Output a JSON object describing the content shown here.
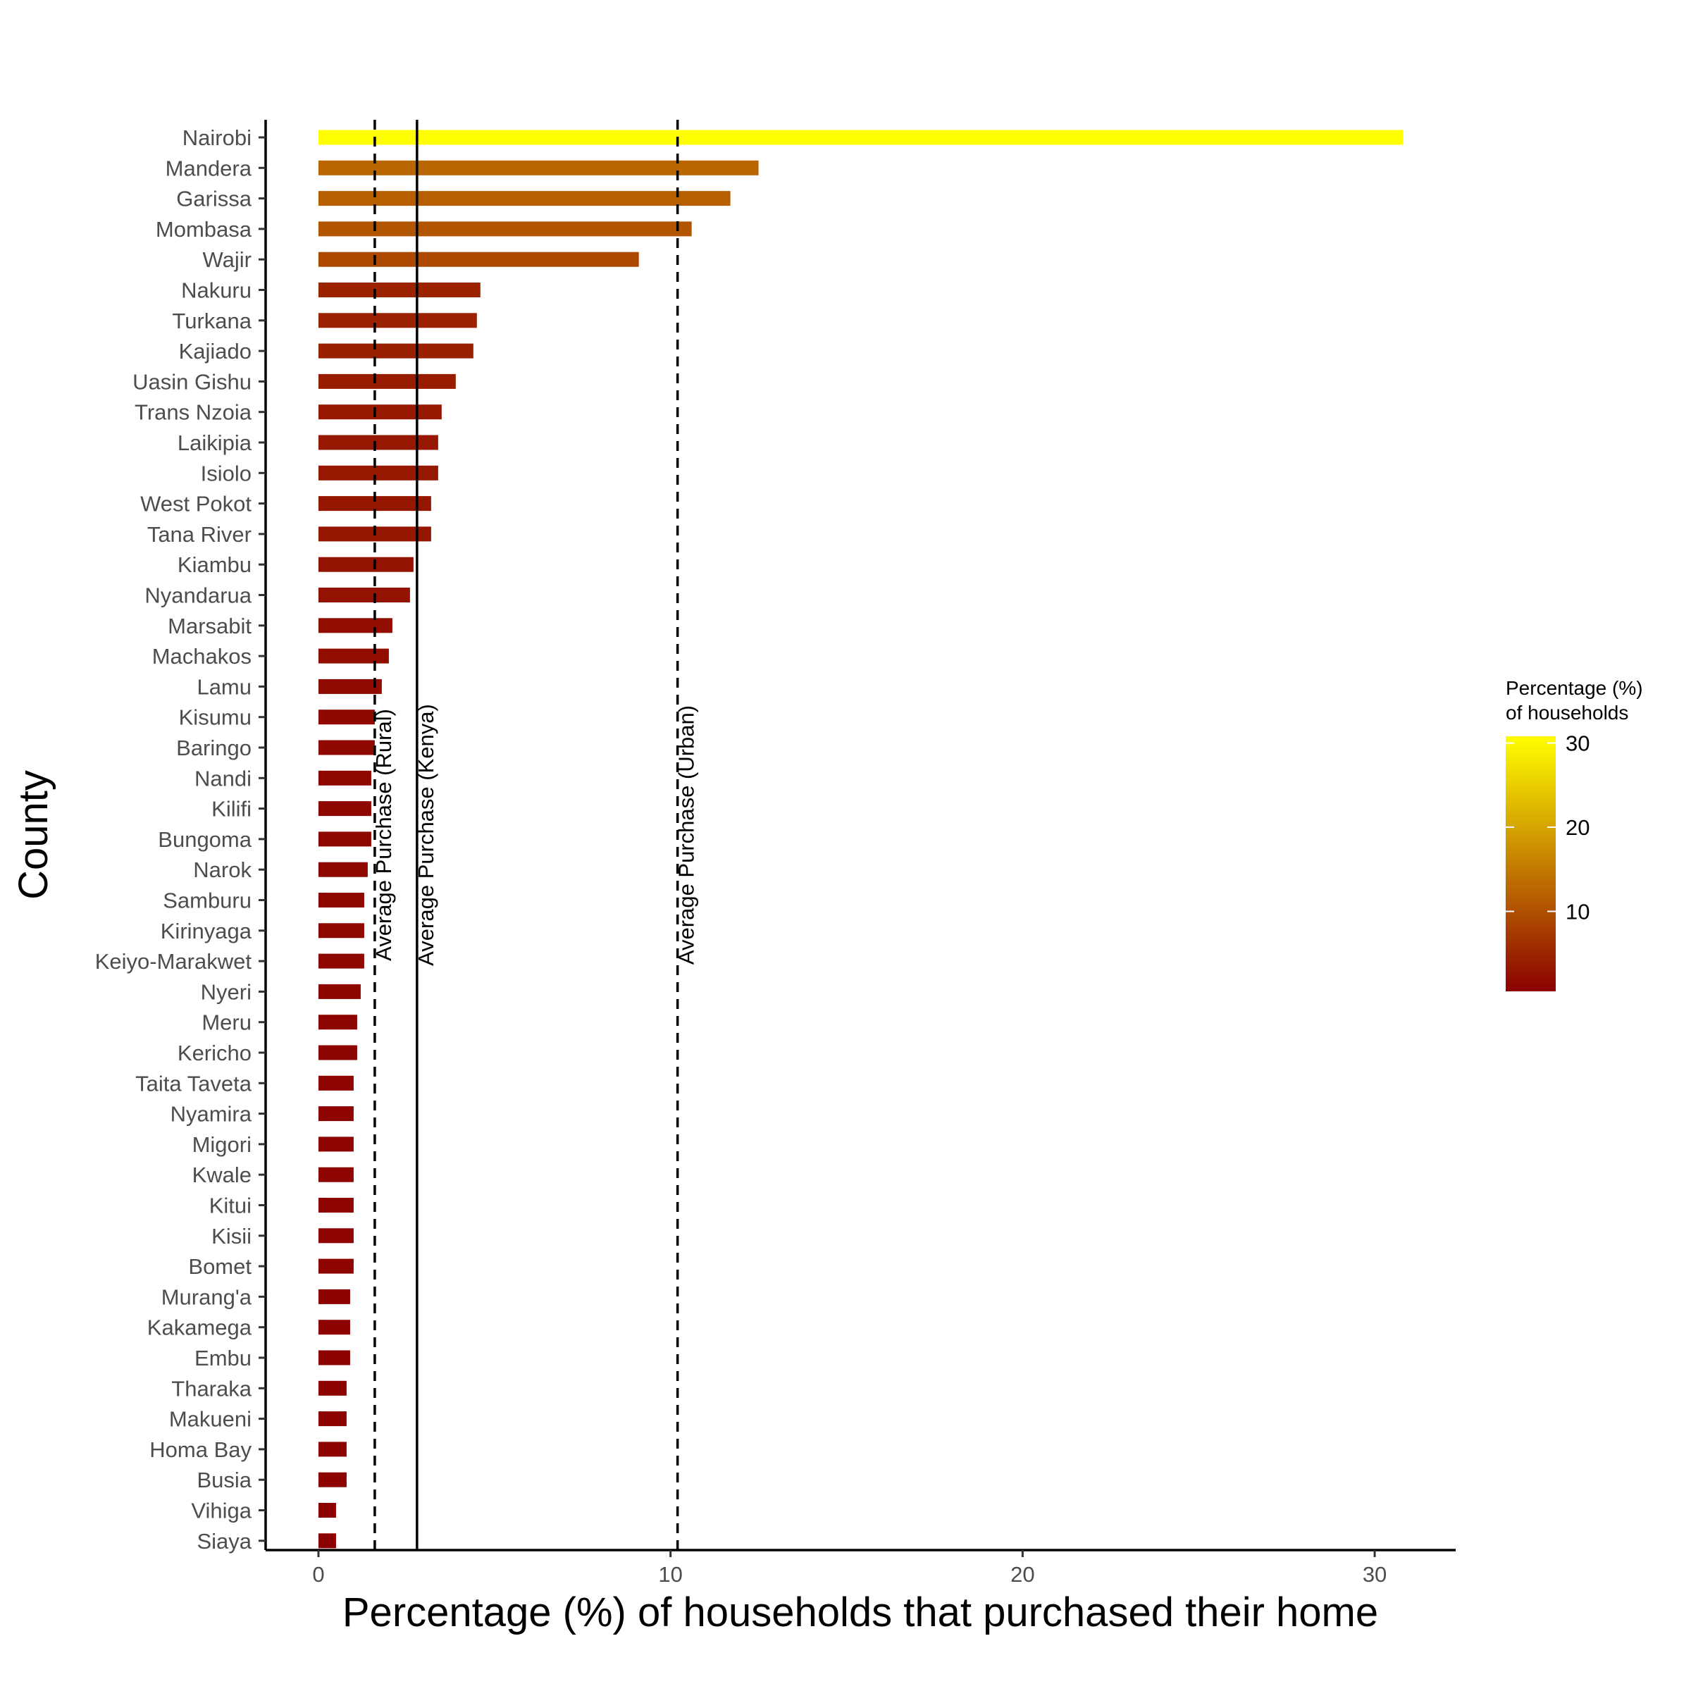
{
  "chart_data": {
    "type": "bar",
    "orientation": "horizontal",
    "xlabel": "Percentage (%) of households that purchased their home",
    "ylabel": "County",
    "xlim": [
      -1.5,
      32.3
    ],
    "x_ticks": [
      0,
      10,
      20,
      30
    ],
    "categories": [
      "Nairobi",
      "Mandera",
      "Garissa",
      "Mombasa",
      "Wajir",
      "Nakuru",
      "Turkana",
      "Kajiado",
      "Uasin Gishu",
      "Trans Nzoia",
      "Laikipia",
      "Isiolo",
      "West Pokot",
      "Tana River",
      "Kiambu",
      "Nyandarua",
      "Marsabit",
      "Machakos",
      "Lamu",
      "Kisumu",
      "Baringo",
      "Nandi",
      "Kilifi",
      "Bungoma",
      "Narok",
      "Samburu",
      "Kirinyaga",
      "Keiyo-Marakwet",
      "Nyeri",
      "Meru",
      "Kericho",
      "Taita Taveta",
      "Nyamira",
      "Migori",
      "Kwale",
      "Kitui",
      "Kisii",
      "Bomet",
      "Murang'a",
      "Kakamega",
      "Embu",
      "Tharaka",
      "Makueni",
      "Homa Bay",
      "Busia",
      "Vihiga",
      "Siaya"
    ],
    "values": [
      30.8,
      12.5,
      11.7,
      10.6,
      9.1,
      4.6,
      4.5,
      4.4,
      3.9,
      3.5,
      3.4,
      3.4,
      3.2,
      3.2,
      2.7,
      2.6,
      2.1,
      2.0,
      1.8,
      1.6,
      1.6,
      1.5,
      1.5,
      1.5,
      1.4,
      1.3,
      1.3,
      1.3,
      1.2,
      1.1,
      1.1,
      1.0,
      1.0,
      1.0,
      1.0,
      1.0,
      1.0,
      1.0,
      0.9,
      0.9,
      0.9,
      0.8,
      0.8,
      0.8,
      0.8,
      0.5,
      0.5
    ],
    "reference_lines": [
      {
        "label": "Average Purchase (Rural)",
        "x": 1.6,
        "style": "dashed"
      },
      {
        "label": "Average Purchase (Kenya)",
        "x": 2.8,
        "style": "solid"
      },
      {
        "label": "Average Purchase (Urban)",
        "x": 10.2,
        "style": "dashed"
      }
    ],
    "color_scale": {
      "title_lines": [
        "Percentage (%)",
        "of households"
      ],
      "low_color": "#8b0000",
      "high_color": "#ffff00",
      "min": 0.5,
      "max": 30.8,
      "ticks": [
        10,
        20,
        30
      ]
    },
    "grid": false,
    "legend_position": "right"
  }
}
